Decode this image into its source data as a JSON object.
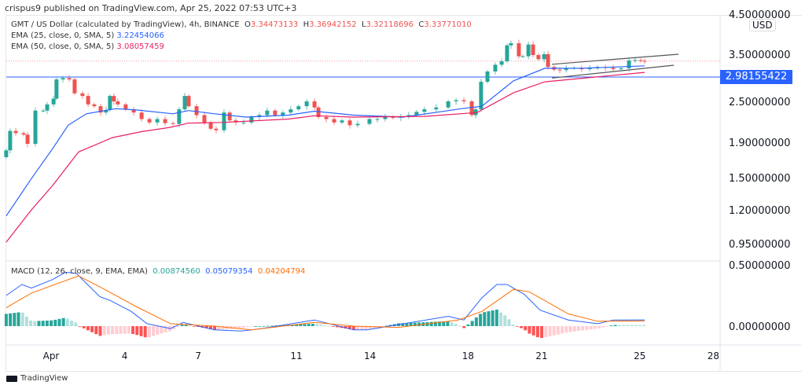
{
  "publisher": "crispus9 published on TradingView.com, Apr 25, 2022 07:53 UTC+3",
  "legend": {
    "symbol": "GMT / US Dollar (calculated by TradingView), 4h, BINANCE",
    "o_label": "O",
    "o": "3.34473133",
    "h_label": "H",
    "h": "3.36942152",
    "l_label": "L",
    "l": "3.32118696",
    "c_label": "C",
    "c": "3.33771010",
    "ema25_label": "EMA (25, close, 0, SMA, 5)",
    "ema25_value": "3.22454066",
    "ema50_label": "EMA (50, close, 0, SMA, 5)",
    "ema50_value": "3.08057459",
    "macd_label": "MACD (12, 26, close, 9, EMA, EMA)",
    "macd_hist": "0.00874560",
    "macd_value": "0.05079354",
    "macd_signal": "0.04204794"
  },
  "currency": "USD",
  "price_tag": "2.98155422",
  "footer": "TradingView",
  "colors": {
    "up": "#26a69a",
    "down": "#ef5350",
    "ema25": "#2962ff",
    "ema50": "#e91e63",
    "macd": "#2962ff",
    "signal": "#ff6d00",
    "hline": "#2962ff",
    "channel": "#555555"
  },
  "chart_data": {
    "type": "candlestick",
    "title": "GMT / US Dollar, 4h, BINANCE",
    "y_ticks": [
      "4.50000000",
      "3.50000000",
      "2.50000000",
      "1.90000000",
      "1.50000000",
      "1.20000000",
      "0.95000000"
    ],
    "y_tick_values": [
      4.5,
      3.5,
      2.5,
      1.9,
      1.5,
      1.2,
      0.95
    ],
    "y_scale": "log",
    "x_ticks": [
      {
        "label": "Apr",
        "day": 1
      },
      {
        "label": "4",
        "day": 4
      },
      {
        "label": "7",
        "day": 7
      },
      {
        "label": "11",
        "day": 11
      },
      {
        "label": "14",
        "day": 14
      },
      {
        "label": "18",
        "day": 18
      },
      {
        "label": "21",
        "day": 21
      },
      {
        "label": "25",
        "day": 25
      },
      {
        "label": "28",
        "day": 28
      }
    ],
    "x_unit": "day of April 2022",
    "x_range": [
      -1.0,
      28.5
    ],
    "horizontal_line": 2.98155422,
    "last_price": 3.3377101,
    "candles_day_close": [
      [
        -0.83,
        1.8
      ],
      [
        -0.67,
        2.05
      ],
      [
        -0.44,
        2.02
      ],
      [
        -0.12,
        2.0
      ],
      [
        0.04,
        1.88
      ],
      [
        0.36,
        2.35
      ],
      [
        0.68,
        2.35
      ],
      [
        0.84,
        2.45
      ],
      [
        1.1,
        2.55
      ],
      [
        1.22,
        2.93
      ],
      [
        1.48,
        2.96
      ],
      [
        1.74,
        2.93
      ],
      [
        1.96,
        2.65
      ],
      [
        2.28,
        2.6
      ],
      [
        2.51,
        2.45
      ],
      [
        2.76,
        2.42
      ],
      [
        3.02,
        2.32
      ],
      [
        3.24,
        2.36
      ],
      [
        3.4,
        2.6
      ],
      [
        3.56,
        2.5
      ],
      [
        3.72,
        2.45
      ],
      [
        4.04,
        2.37
      ],
      [
        4.37,
        2.32
      ],
      [
        4.69,
        2.22
      ],
      [
        5.01,
        2.17
      ],
      [
        5.33,
        2.22
      ],
      [
        5.65,
        2.16
      ],
      [
        5.97,
        2.15
      ],
      [
        6.22,
        2.37
      ],
      [
        6.45,
        2.6
      ],
      [
        6.61,
        2.42
      ],
      [
        6.93,
        2.28
      ],
      [
        7.25,
        2.17
      ],
      [
        7.51,
        2.08
      ],
      [
        7.73,
        2.06
      ],
      [
        8.05,
        2.32
      ],
      [
        8.28,
        2.2
      ],
      [
        8.53,
        2.17
      ],
      [
        8.85,
        2.17
      ],
      [
        9.17,
        2.25
      ],
      [
        9.49,
        2.28
      ],
      [
        9.81,
        2.35
      ],
      [
        10.13,
        2.28
      ],
      [
        10.45,
        2.32
      ],
      [
        10.77,
        2.37
      ],
      [
        11.09,
        2.42
      ],
      [
        11.42,
        2.5
      ],
      [
        11.74,
        2.4
      ],
      [
        11.9,
        2.25
      ],
      [
        12.22,
        2.22
      ],
      [
        12.54,
        2.17
      ],
      [
        12.86,
        2.2
      ],
      [
        13.18,
        2.13
      ],
      [
        13.5,
        2.15
      ],
      [
        13.98,
        2.22
      ],
      [
        14.3,
        2.22
      ],
      [
        14.62,
        2.25
      ],
      [
        14.94,
        2.24
      ],
      [
        15.26,
        2.26
      ],
      [
        15.58,
        2.28
      ],
      [
        15.9,
        2.33
      ],
      [
        16.22,
        2.37
      ],
      [
        16.7,
        2.4
      ],
      [
        17.19,
        2.5
      ],
      [
        17.51,
        2.52
      ],
      [
        17.83,
        2.5
      ],
      [
        18.15,
        2.28
      ],
      [
        18.31,
        2.37
      ],
      [
        18.53,
        2.88
      ],
      [
        18.79,
        3.1
      ],
      [
        19.11,
        3.25
      ],
      [
        19.37,
        3.33
      ],
      [
        19.59,
        3.7
      ],
      [
        19.75,
        3.75
      ],
      [
        20.07,
        3.45
      ],
      [
        20.23,
        3.45
      ],
      [
        20.46,
        3.72
      ],
      [
        20.65,
        3.48
      ],
      [
        20.87,
        3.38
      ],
      [
        21.1,
        3.5
      ],
      [
        21.26,
        3.2
      ],
      [
        21.51,
        3.14
      ],
      [
        21.74,
        3.13
      ],
      [
        22.0,
        3.17
      ],
      [
        22.32,
        3.18
      ],
      [
        22.63,
        3.15
      ],
      [
        22.96,
        3.17
      ],
      [
        23.28,
        3.2
      ],
      [
        23.6,
        3.18
      ],
      [
        23.92,
        3.15
      ],
      [
        24.24,
        3.17
      ],
      [
        24.56,
        3.35
      ],
      [
        24.81,
        3.36
      ],
      [
        25.04,
        3.34
      ],
      [
        25.2,
        3.3377
      ]
    ],
    "ema25_day_value": [
      [
        -0.83,
        1.15
      ],
      [
        0.2,
        1.49
      ],
      [
        1.06,
        1.82
      ],
      [
        1.7,
        2.13
      ],
      [
        2.44,
        2.3
      ],
      [
        3.63,
        2.38
      ],
      [
        4.46,
        2.36
      ],
      [
        5.97,
        2.3
      ],
      [
        6.6,
        2.35
      ],
      [
        7.67,
        2.3
      ],
      [
        8.95,
        2.25
      ],
      [
        10.68,
        2.28
      ],
      [
        11.74,
        2.34
      ],
      [
        13.34,
        2.28
      ],
      [
        15.36,
        2.25
      ],
      [
        17.73,
        2.38
      ],
      [
        18.56,
        2.42
      ],
      [
        19.85,
        2.9
      ],
      [
        21.13,
        3.17
      ],
      [
        22.63,
        3.17
      ],
      [
        25.2,
        3.2245
      ]
    ],
    "ema50_day_value": [
      [
        -0.83,
        0.96
      ],
      [
        0.2,
        1.2
      ],
      [
        1.06,
        1.42
      ],
      [
        2.12,
        1.78
      ],
      [
        3.5,
        1.96
      ],
      [
        4.69,
        2.04
      ],
      [
        5.87,
        2.1
      ],
      [
        6.6,
        2.16
      ],
      [
        7.99,
        2.17
      ],
      [
        10.68,
        2.22
      ],
      [
        11.74,
        2.27
      ],
      [
        13.34,
        2.25
      ],
      [
        16.22,
        2.26
      ],
      [
        18.37,
        2.32
      ],
      [
        19.85,
        2.66
      ],
      [
        21.13,
        2.88
      ],
      [
        25.2,
        3.0806
      ]
    ],
    "channel_lines": [
      [
        [
          21.42,
          3.26
        ],
        [
          26.58,
          3.5
        ]
      ],
      [
        [
          21.42,
          2.96
        ],
        [
          26.39,
          3.24
        ]
      ]
    ],
    "macd": {
      "y_ticks": [
        "0.50000000",
        "0.00000000"
      ],
      "y_tick_values": [
        0.5,
        0.0
      ],
      "macd_day_value": [
        [
          -0.83,
          0.25
        ],
        [
          -0.19,
          0.34
        ],
        [
          0.2,
          0.31
        ],
        [
          1.06,
          0.38
        ],
        [
          1.58,
          0.44
        ],
        [
          2.03,
          0.43
        ],
        [
          2.99,
          0.24
        ],
        [
          3.4,
          0.21
        ],
        [
          4.27,
          0.12
        ],
        [
          4.91,
          0.02
        ],
        [
          5.87,
          -0.02
        ],
        [
          6.38,
          0.03
        ],
        [
          7.67,
          -0.03
        ],
        [
          8.76,
          -0.04
        ],
        [
          9.59,
          -0.02
        ],
        [
          11.74,
          0.05
        ],
        [
          13.34,
          -0.03
        ],
        [
          13.88,
          -0.03
        ],
        [
          17.19,
          0.08
        ],
        [
          17.83,
          0.05
        ],
        [
          18.56,
          0.23
        ],
        [
          19.17,
          0.34
        ],
        [
          19.59,
          0.34
        ],
        [
          20.29,
          0.26
        ],
        [
          20.94,
          0.13
        ],
        [
          22.09,
          0.05
        ],
        [
          23.28,
          0.02
        ],
        [
          23.92,
          0.05
        ],
        [
          25.2,
          0.0508
        ]
      ],
      "signal_day_value": [
        [
          -0.83,
          0.15
        ],
        [
          0.2,
          0.27
        ],
        [
          2.12,
          0.41
        ],
        [
          3.18,
          0.3
        ],
        [
          4.46,
          0.16
        ],
        [
          5.87,
          0.02
        ],
        [
          7.67,
          0.0
        ],
        [
          9.17,
          -0.03
        ],
        [
          11.74,
          0.03
        ],
        [
          13.34,
          0.0
        ],
        [
          15.17,
          -0.01
        ],
        [
          17.6,
          0.05
        ],
        [
          18.56,
          0.12
        ],
        [
          19.85,
          0.3
        ],
        [
          20.49,
          0.28
        ],
        [
          22.09,
          0.1
        ],
        [
          23.28,
          0.04
        ],
        [
          25.2,
          0.042
        ]
      ]
    }
  }
}
